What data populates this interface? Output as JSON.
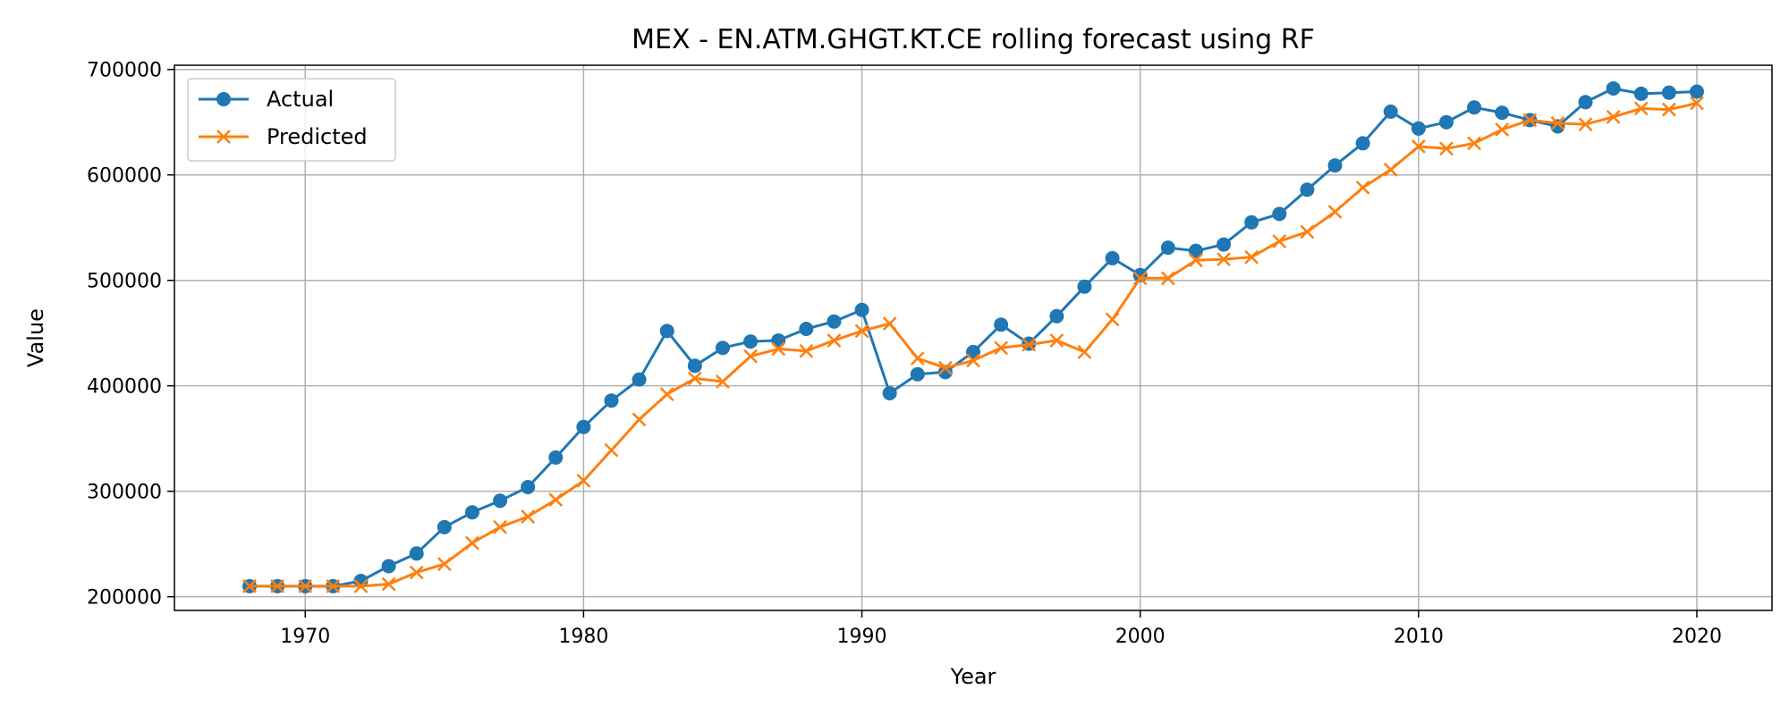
{
  "chart_data": {
    "type": "line",
    "title": "MEX - EN.ATM.GHGT.KT.CE rolling forecast using RF",
    "xlabel": "Year",
    "ylabel": "Value",
    "xlim": [
      1965.3,
      2022.7
    ],
    "ylim": [
      187000,
      704000
    ],
    "xticks": [
      1970,
      1980,
      1990,
      2000,
      2010,
      2020
    ],
    "yticks": [
      200000,
      300000,
      400000,
      500000,
      600000,
      700000
    ],
    "grid": true,
    "legend_position": "upper-left",
    "x": [
      1968,
      1969,
      1970,
      1971,
      1972,
      1973,
      1974,
      1975,
      1976,
      1977,
      1978,
      1979,
      1980,
      1981,
      1982,
      1983,
      1984,
      1985,
      1986,
      1987,
      1988,
      1989,
      1990,
      1991,
      1992,
      1993,
      1994,
      1995,
      1996,
      1997,
      1998,
      1999,
      2000,
      2001,
      2002,
      2003,
      2004,
      2005,
      2006,
      2007,
      2008,
      2009,
      2010,
      2011,
      2012,
      2013,
      2014,
      2015,
      2016,
      2017,
      2018,
      2019,
      2020
    ],
    "series": [
      {
        "name": "Actual",
        "color": "#1f77b4",
        "marker": "circle",
        "values": [
          210000,
          210000,
          210000,
          210000,
          215000,
          229000,
          241000,
          266000,
          280000,
          291000,
          304000,
          332000,
          361000,
          386000,
          406000,
          452000,
          419000,
          436000,
          442000,
          443000,
          454000,
          461000,
          472000,
          393000,
          411000,
          413000,
          432000,
          458000,
          440000,
          466000,
          494000,
          521000,
          505000,
          531000,
          528000,
          534000,
          555000,
          563000,
          586000,
          609000,
          630000,
          660000,
          644000,
          650000,
          664000,
          659000,
          652000,
          646000,
          669000,
          682000,
          677000,
          678000,
          679000
        ]
      },
      {
        "name": "Predicted",
        "color": "#ff7f0e",
        "marker": "x",
        "values": [
          210000,
          210000,
          210000,
          210000,
          210000,
          212000,
          223000,
          231000,
          251000,
          266000,
          276000,
          292000,
          310000,
          339000,
          368000,
          392000,
          407000,
          404000,
          428000,
          435000,
          433000,
          443000,
          452000,
          459000,
          426000,
          417000,
          424000,
          436000,
          439000,
          443000,
          432000,
          463000,
          502000,
          502000,
          519000,
          520000,
          522000,
          537000,
          546000,
          565000,
          588000,
          605000,
          627000,
          625000,
          630000,
          643000,
          652000,
          649000,
          648000,
          655000,
          663000,
          662000,
          668000
        ]
      }
    ]
  }
}
